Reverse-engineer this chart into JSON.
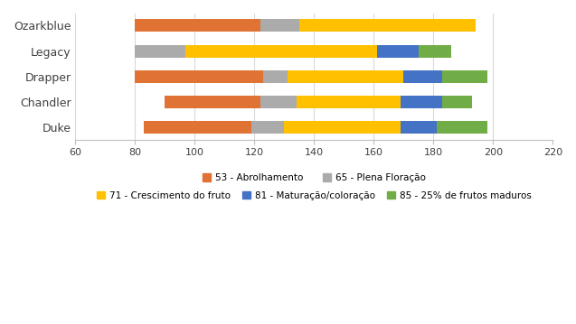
{
  "cultivars": [
    "Duke",
    "Chandler",
    "Drapper",
    "Legacy",
    "Ozarkblue"
  ],
  "colors": [
    "#E07333",
    "#ABABAB",
    "#FFC000",
    "#4472C4",
    "#70AD47"
  ],
  "bars": [
    {
      "base": 83,
      "segments": [
        36,
        11,
        39,
        12,
        17
      ]
    },
    {
      "base": 90,
      "segments": [
        32,
        12,
        35,
        14,
        10
      ]
    },
    {
      "base": 80,
      "segments": [
        43,
        8,
        39,
        13,
        15
      ]
    },
    {
      "base": 80,
      "segments": [
        0,
        17,
        64,
        14,
        11
      ]
    },
    {
      "base": 80,
      "segments": [
        42,
        13,
        59,
        0,
        0
      ]
    }
  ],
  "xlim": [
    60,
    220
  ],
  "xticks": [
    60,
    80,
    100,
    120,
    140,
    160,
    180,
    200,
    220
  ],
  "legend_labels_row1": [
    "53 - Abrolhamento",
    "65 - Plena Floração"
  ],
  "legend_labels_row2": [
    "71 - Crescimento do fruto",
    "81 - Maturação/coloração",
    "85 - 25% de frutos maduros"
  ],
  "legend_colors": [
    "#E07333",
    "#ABABAB",
    "#FFC000",
    "#4472C4",
    "#70AD47"
  ],
  "background_color": "#FFFFFF",
  "grid_color": "#D9D9D9",
  "bar_height": 0.5
}
